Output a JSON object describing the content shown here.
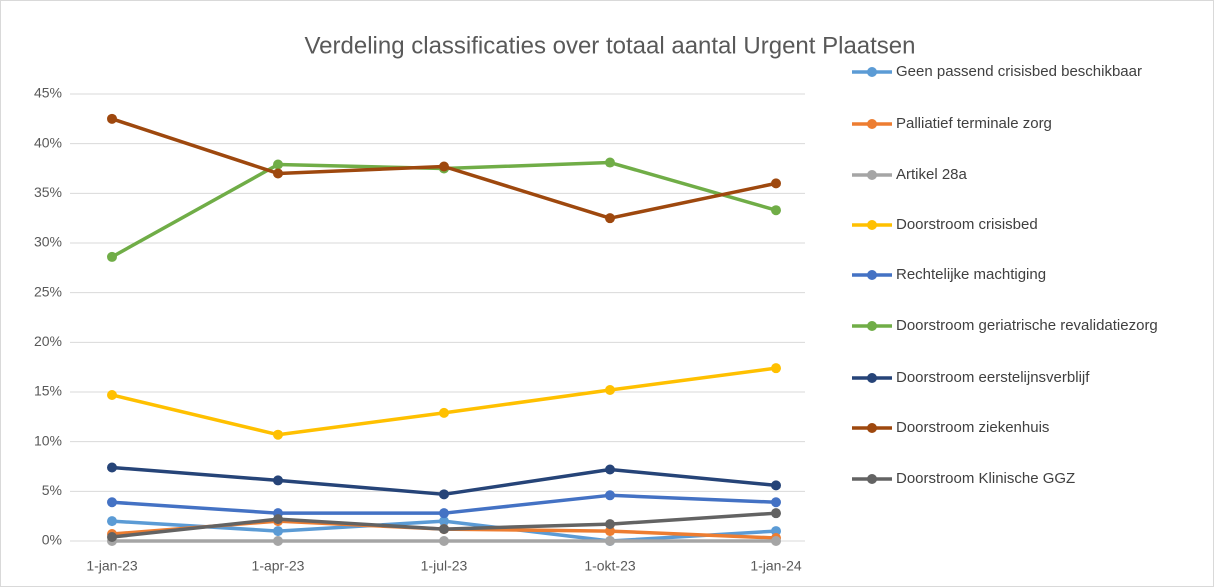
{
  "chart_data": {
    "type": "line",
    "title": "Verdeling classificaties over totaal aantal Urgent Plaatsen",
    "categories": [
      "1-jan-23",
      "1-apr-23",
      "1-jul-23",
      "1-okt-23",
      "1-jan-24"
    ],
    "ylim": [
      0,
      45
    ],
    "yticks": [
      {
        "value": 0,
        "label": "0%"
      },
      {
        "value": 5,
        "label": "5%"
      },
      {
        "value": 10,
        "label": "10%"
      },
      {
        "value": 15,
        "label": "15%"
      },
      {
        "value": 20,
        "label": "20%"
      },
      {
        "value": 25,
        "label": "25%"
      },
      {
        "value": 30,
        "label": "30%"
      },
      {
        "value": 35,
        "label": "35%"
      },
      {
        "value": 40,
        "label": "40%"
      },
      {
        "value": 45,
        "label": "45%"
      }
    ],
    "grid": true,
    "legend": "right",
    "series": [
      {
        "name": "Geen passend crisisbed beschikbaar",
        "color": "#5b9bd5",
        "values": [
          2.0,
          1.0,
          2.0,
          0.0,
          1.0
        ]
      },
      {
        "name": "Palliatief terminale zorg",
        "color": "#ed7d31",
        "values": [
          0.7,
          2.0,
          1.2,
          1.0,
          0.3
        ]
      },
      {
        "name": "Artikel 28a",
        "color": "#a5a5a5",
        "values": [
          0,
          0,
          0,
          0,
          0
        ]
      },
      {
        "name": "Doorstroom crisisbed",
        "color": "#ffc000",
        "values": [
          14.7,
          10.7,
          12.9,
          15.2,
          17.4
        ]
      },
      {
        "name": "Rechtelijke machtiging",
        "color": "#4472c4",
        "values": [
          3.9,
          2.8,
          2.8,
          4.6,
          3.9
        ]
      },
      {
        "name": "Doorstroom geriatrische revalidatiezorg",
        "color": "#70ad47",
        "values": [
          28.6,
          37.9,
          37.5,
          38.1,
          33.3
        ]
      },
      {
        "name": "Doorstroom eerstelijnsverblijf",
        "color": "#264478",
        "values": [
          7.4,
          6.1,
          4.7,
          7.2,
          5.6
        ]
      },
      {
        "name": "Doorstroom ziekenhuis",
        "color": "#9e480e",
        "values": [
          42.5,
          37.0,
          37.7,
          32.5,
          36.0
        ]
      },
      {
        "name": "Doorstroom Klinische GGZ",
        "color": "#636363",
        "values": [
          0.4,
          2.2,
          1.2,
          1.7,
          2.8
        ]
      }
    ]
  }
}
